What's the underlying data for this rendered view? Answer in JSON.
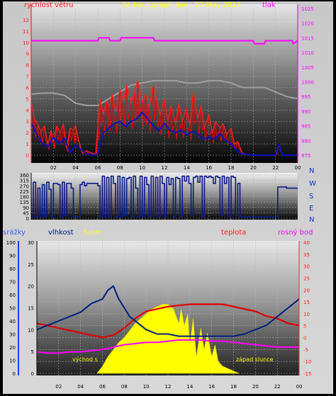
{
  "colors": {
    "wind": "#ff2020",
    "gust": "#ff0000",
    "avg_wind": "#1010c0",
    "pressure": "#ff00ff",
    "pressure_axis": "#ff00ff",
    "temp_max": "#a0a0a0",
    "direction": "#0a1a8a",
    "rain": "#2040ff",
    "humidity": "#002080",
    "solar": "#ffff00",
    "temp": "#e00000",
    "dew": "#ff00ff",
    "label_red": "#ff2020",
    "label_yellow": "#ffff00",
    "label_blue": "#4060ff",
    "axis_text": "#000000"
  },
  "chart_data": [
    {
      "type": "line",
      "title": "24 hour graph day : 07 May 2013",
      "left_label": "rychlost větru",
      "right_label": "tlak",
      "x_ticks": [
        "02",
        "04",
        "06",
        "08",
        "10",
        "12",
        "14",
        "16",
        "18",
        "20",
        "22",
        "00"
      ],
      "y_ticks_left": [
        "0",
        "1",
        "2",
        "3",
        "4",
        "5",
        "6",
        "7",
        "8",
        "9",
        "10",
        "11",
        "12"
      ],
      "y_ticks_right": [
        "975",
        "980",
        "985",
        "990",
        "995",
        "1000",
        "1005",
        "1010",
        "1015",
        "1020",
        "1025"
      ],
      "ylim_left": [
        0,
        13
      ],
      "ylim_right": [
        975,
        1025
      ],
      "series": [
        {
          "role": "gust",
          "x": [
            0,
            0.3,
            0.6,
            0.9,
            1.2,
            1.5,
            1.8,
            2,
            2.3,
            2.6,
            2.9,
            3.2,
            3.5,
            3.8,
            4,
            4.3,
            4.6,
            5,
            5.4,
            5.8,
            6,
            6.2,
            6.5,
            6.8,
            7,
            7.3,
            7.6,
            8,
            8.3,
            8.6,
            9,
            9.3,
            9.6,
            10,
            10.3,
            10.6,
            11,
            11.3,
            11.6,
            12,
            12.3,
            12.6,
            13,
            13.3,
            13.6,
            14,
            14.3,
            14.6,
            15,
            15.3,
            15.6,
            16,
            16.3,
            16.6,
            17,
            17.3,
            17.6,
            18,
            18.3,
            18.6,
            19,
            19.5,
            20,
            21,
            22,
            22.3,
            22.6,
            23,
            24
          ],
          "values": [
            4.7,
            3.2,
            2.7,
            2.1,
            2.6,
            1.0,
            2.2,
            1.2,
            2.6,
            2.0,
            2.8,
            0.6,
            2.4,
            2.2,
            2.6,
            1.2,
            0.2,
            0.4,
            0.2,
            0.1,
            2.6,
            5.0,
            3.6,
            4.8,
            4.3,
            5.4,
            3.8,
            5.8,
            4.8,
            6.2,
            4.6,
            5.6,
            6.6,
            4.7,
            5.4,
            4.2,
            6.2,
            5.0,
            3.5,
            5.0,
            3.0,
            4.4,
            2.8,
            4.6,
            3.0,
            4.2,
            2.6,
            5.6,
            3.2,
            4.4,
            2.4,
            3.6,
            2.0,
            3.0,
            2.4,
            2.8,
            1.8,
            2.4,
            1.0,
            1.2,
            0.2,
            0.0,
            0.0,
            0.0,
            0.0,
            1.0,
            0.0,
            0.0,
            0.0
          ]
        },
        {
          "role": "average",
          "x": [
            0,
            0.5,
            1,
            1.5,
            2,
            2.5,
            3,
            3.5,
            4,
            4.5,
            5,
            5.5,
            6,
            6.5,
            7,
            7.5,
            8,
            8.5,
            9,
            9.5,
            10,
            10.5,
            11,
            11.5,
            12,
            12.5,
            13,
            13.5,
            14,
            14.5,
            15,
            15.5,
            16,
            16.5,
            17,
            17.5,
            18,
            18.5,
            19,
            20,
            21,
            22,
            22.3,
            22.6,
            23,
            24
          ],
          "values": [
            2.8,
            1.9,
            1.0,
            0.7,
            1.6,
            1.0,
            1.5,
            0.2,
            0.9,
            0.5,
            0.1,
            0.0,
            0.1,
            2.0,
            2.4,
            2.8,
            3.0,
            2.5,
            3.0,
            3.2,
            3.8,
            3.2,
            2.6,
            2.2,
            2.8,
            2.2,
            2.0,
            2.2,
            1.8,
            2.1,
            1.9,
            1.4,
            1.6,
            1.4,
            1.9,
            1.3,
            1.0,
            0.4,
            0.1,
            0.0,
            0.0,
            0.0,
            1.0,
            0.0,
            0.0,
            0.0
          ]
        },
        {
          "role": "pressure",
          "x": [
            0,
            6,
            6.1,
            7,
            7.1,
            8,
            8.1,
            11,
            11.1,
            13,
            13.1,
            20,
            20.1,
            21,
            21.1,
            23.5,
            23.6,
            24
          ],
          "values": [
            1014,
            1014,
            1015,
            1015,
            1014,
            1014,
            1015,
            1015,
            1014,
            1014,
            1014,
            1014,
            1013,
            1013,
            1014,
            1014,
            1013,
            1014
          ]
        },
        {
          "role": "temp_max",
          "x": [
            0,
            1,
            2,
            3,
            4,
            5,
            6,
            7,
            8,
            9,
            10,
            11,
            12,
            13,
            14,
            15,
            16,
            17,
            18,
            19,
            20,
            21,
            22,
            23,
            24
          ],
          "values": [
            5.4,
            5.5,
            5.5,
            5.3,
            4.6,
            4.4,
            4.4,
            5.0,
            5.6,
            6.2,
            6.4,
            6.6,
            6.6,
            6.6,
            6.4,
            6.4,
            6.6,
            6.6,
            6.4,
            6.0,
            6.0,
            6.0,
            5.6,
            5.2,
            5.0
          ]
        }
      ]
    },
    {
      "type": "line",
      "y_ticks": [
        "0",
        "45",
        "90",
        "135",
        "180",
        "225",
        "270",
        "315",
        "360"
      ],
      "right_labels": [
        "N",
        "W",
        "S",
        "E",
        "N"
      ],
      "ylim": [
        0,
        360
      ],
      "series": [
        {
          "role": "direction",
          "x": [
            0,
            0.2,
            0.4,
            0.6,
            0.8,
            1,
            1.2,
            1.4,
            1.6,
            1.8,
            2,
            2.2,
            2.4,
            2.6,
            2.8,
            3,
            3.2,
            3.4,
            3.6,
            3.8,
            4,
            4.2,
            4.4,
            4.6,
            4.8,
            5,
            5.5,
            6,
            6.2,
            6.4,
            6.6,
            6.8,
            7,
            7.2,
            7.4,
            7.6,
            7.8,
            8,
            8.2,
            8.4,
            8.6,
            8.8,
            9,
            9.2,
            9.4,
            9.6,
            9.8,
            10,
            10.2,
            10.4,
            10.6,
            10.8,
            11,
            11.2,
            11.4,
            11.6,
            11.8,
            12,
            12.2,
            12.4,
            12.6,
            12.8,
            13,
            13.2,
            13.4,
            13.6,
            13.8,
            14,
            14.2,
            14.4,
            14.6,
            14.8,
            15,
            15.2,
            15.4,
            15.6,
            15.8,
            16,
            16.2,
            16.4,
            16.6,
            16.8,
            17,
            17.2,
            17.4,
            17.6,
            17.8,
            18,
            18.2,
            18.4,
            18.6,
            18.8,
            19,
            20,
            21,
            22,
            22.2,
            22.4,
            23,
            24
          ],
          "values": [
            10,
            300,
            10,
            250,
            10,
            280,
            10,
            300,
            240,
            10,
            290,
            290,
            280,
            10,
            300,
            20,
            290,
            290,
            250,
            10,
            10,
            10,
            280,
            300,
            270,
            290,
            290,
            270,
            10,
            350,
            10,
            340,
            10,
            350,
            290,
            10,
            350,
            10,
            340,
            20,
            330,
            340,
            10,
            350,
            250,
            10,
            350,
            10,
            340,
            280,
            10,
            350,
            20,
            340,
            10,
            350,
            290,
            10,
            340,
            280,
            330,
            10,
            340,
            330,
            10,
            350,
            310,
            350,
            290,
            20,
            340,
            350,
            300,
            350,
            10,
            350,
            340,
            350,
            340,
            290,
            350,
            340,
            20,
            350,
            290,
            340,
            10,
            350,
            340,
            20,
            290,
            10,
            10,
            10,
            10,
            10,
            260,
            260,
            250,
            250
          ]
        }
      ]
    },
    {
      "type": "line",
      "left_labels": [
        "srážky",
        "vlhkost",
        "Solar"
      ],
      "right_labels": [
        "teplota",
        "rosný bod"
      ],
      "annotations": [
        "východ s",
        "západ slunce"
      ],
      "y_ticks_rain": [
        "0",
        "10",
        "20",
        "30",
        "40",
        "50",
        "60",
        "70",
        "80",
        "90",
        "100"
      ],
      "y_ticks_humidity": [
        "0",
        "5",
        "10",
        "15",
        "20",
        "25",
        "30"
      ],
      "y_ticks_temp": [
        "-15",
        "-10",
        "-5",
        "0",
        "5",
        "10",
        "15",
        "20",
        "25",
        "30",
        "35",
        "40"
      ],
      "x_ticks": [
        "02",
        "04",
        "06",
        "08",
        "10",
        "12",
        "14",
        "16",
        "18",
        "20",
        "22",
        "00"
      ],
      "ylim_temp": [
        -15,
        40
      ],
      "series": [
        {
          "role": "humidity_line",
          "x": [
            0,
            1,
            2,
            3,
            4,
            5,
            6,
            6.5,
            7,
            7.5,
            8,
            8.5,
            9,
            9.5,
            10,
            10.5,
            11,
            12,
            13,
            14,
            15,
            16,
            17,
            18,
            19,
            20,
            21,
            22,
            23,
            24
          ],
          "values": [
            10,
            11,
            12,
            13,
            14,
            16,
            17,
            19,
            20,
            17,
            15,
            13,
            12,
            11,
            10,
            9.5,
            9,
            9,
            8.5,
            8.5,
            8.5,
            8.5,
            8.5,
            8.5,
            9,
            10,
            11,
            13,
            15,
            17
          ]
        },
        {
          "role": "temperature",
          "x": [
            0,
            1,
            2,
            3,
            4,
            5,
            6,
            7,
            8,
            9,
            10,
            11,
            12,
            13,
            14,
            15,
            16,
            17,
            18,
            19,
            20,
            21,
            22,
            23,
            24
          ],
          "values": [
            6,
            5,
            4,
            3,
            2,
            1,
            0,
            1,
            4,
            8,
            11,
            12,
            13,
            13.5,
            14,
            14,
            14,
            14,
            13,
            12,
            11,
            9,
            8,
            6,
            5
          ]
        },
        {
          "role": "dewpoint",
          "x": [
            0,
            1,
            2,
            3,
            4,
            5,
            6,
            7,
            8,
            9,
            10,
            11,
            12,
            13,
            14,
            15,
            16,
            17,
            18,
            19,
            20,
            21,
            22,
            23,
            24
          ],
          "values": [
            -6,
            -6.5,
            -6.5,
            -6,
            -6,
            -5.5,
            -5,
            -4,
            -3,
            -2.5,
            -2,
            -2,
            -1.5,
            -1,
            -1,
            -1,
            -1.5,
            -1.5,
            -2,
            -2.5,
            -3,
            -3.5,
            -4,
            -4,
            -4
          ]
        },
        {
          "role": "solar",
          "x": [
            5.5,
            6,
            6.5,
            7,
            7.5,
            8,
            8.5,
            9,
            9.5,
            10,
            10.5,
            11,
            11.5,
            12,
            12.5,
            13,
            13.2,
            13.5,
            13.8,
            14,
            14.3,
            14.6,
            15,
            15.3,
            15.6,
            16,
            16.3,
            16.6,
            17,
            17.5,
            18,
            18.5
          ],
          "values": [
            -15,
            -12,
            -8,
            -5,
            -2,
            0,
            3,
            6,
            8,
            10,
            12,
            13,
            14,
            14,
            12,
            6,
            12,
            5,
            10,
            -3,
            8,
            -8,
            4,
            -5,
            2,
            -8,
            -3,
            -10,
            -12,
            -13,
            -14,
            -15
          ]
        }
      ]
    }
  ]
}
